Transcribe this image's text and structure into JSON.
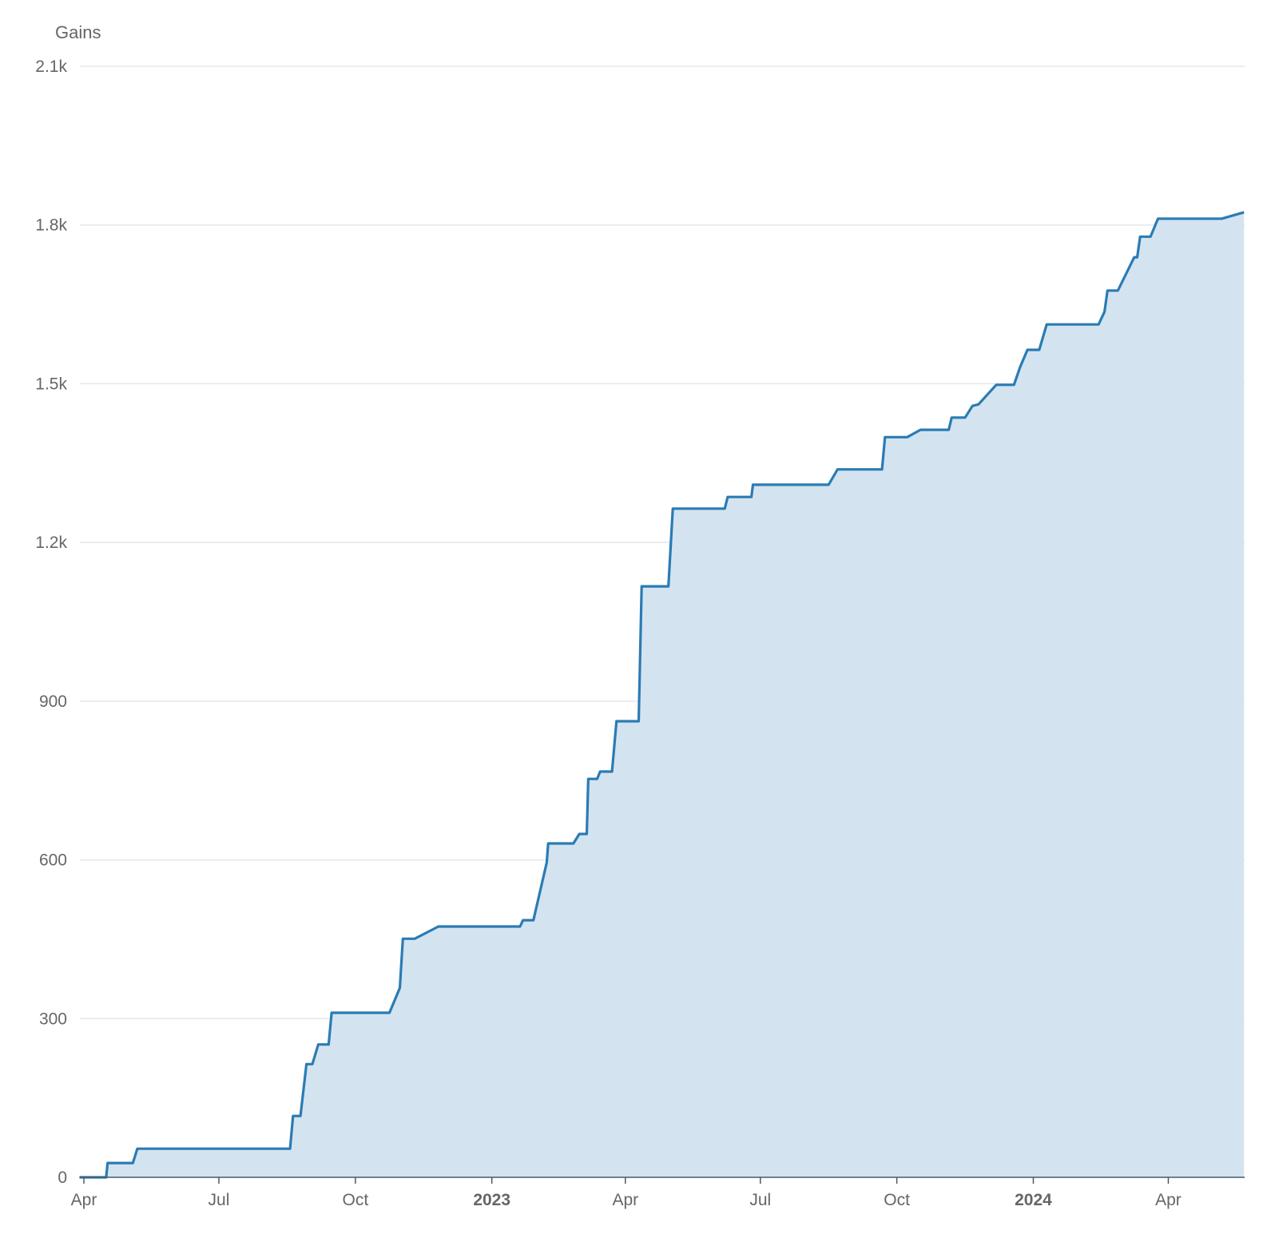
{
  "chart_data": {
    "type": "area",
    "title": "",
    "ylabel": "Gains",
    "xlabel": "",
    "ylim": [
      0,
      2100
    ],
    "xlim": [
      "2022-03-29",
      "2024-05-22"
    ],
    "grid": true,
    "colors": {
      "line": "#2b7bb4",
      "fill": "#d3e4f0",
      "grid": "#e2e8ee",
      "axis": "#4a5a6a"
    },
    "y_ticks": [
      {
        "value": 0,
        "label": "0"
      },
      {
        "value": 300,
        "label": "300"
      },
      {
        "value": 600,
        "label": "600"
      },
      {
        "value": 900,
        "label": "900"
      },
      {
        "value": 1200,
        "label": "1.2k"
      },
      {
        "value": 1500,
        "label": "1.5k"
      },
      {
        "value": 1800,
        "label": "1.8k"
      },
      {
        "value": 2100,
        "label": "2.1k"
      }
    ],
    "x_ticks": [
      {
        "date": "2022-04-01",
        "label": "Apr",
        "year": false
      },
      {
        "date": "2022-07-01",
        "label": "Jul",
        "year": false
      },
      {
        "date": "2022-10-01",
        "label": "Oct",
        "year": false
      },
      {
        "date": "2023-01-01",
        "label": "2023",
        "year": true
      },
      {
        "date": "2023-04-01",
        "label": "Apr",
        "year": false
      },
      {
        "date": "2023-07-01",
        "label": "Jul",
        "year": false
      },
      {
        "date": "2023-10-01",
        "label": "Oct",
        "year": false
      },
      {
        "date": "2024-01-01",
        "label": "2024",
        "year": true
      },
      {
        "date": "2024-04-01",
        "label": "Apr",
        "year": false
      }
    ],
    "series": [
      {
        "points": [
          [
            "2022-03-29",
            0
          ],
          [
            "2022-04-16",
            0
          ],
          [
            "2022-04-17",
            27
          ],
          [
            "2022-05-04",
            27
          ],
          [
            "2022-05-07",
            54
          ],
          [
            "2022-08-18",
            54
          ],
          [
            "2022-08-20",
            116
          ],
          [
            "2022-08-25",
            116
          ],
          [
            "2022-08-29",
            214
          ],
          [
            "2022-09-02",
            214
          ],
          [
            "2022-09-06",
            251
          ],
          [
            "2022-09-13",
            251
          ],
          [
            "2022-09-15",
            311
          ],
          [
            "2022-10-24",
            311
          ],
          [
            "2022-10-31",
            358
          ],
          [
            "2022-11-02",
            451
          ],
          [
            "2022-11-10",
            451
          ],
          [
            "2022-11-26",
            474
          ],
          [
            "2023-01-20",
            474
          ],
          [
            "2023-01-22",
            486
          ],
          [
            "2023-01-29",
            486
          ],
          [
            "2023-02-07",
            595
          ],
          [
            "2023-02-08",
            631
          ],
          [
            "2023-02-25",
            631
          ],
          [
            "2023-03-01",
            649
          ],
          [
            "2023-03-06",
            649
          ],
          [
            "2023-03-07",
            753
          ],
          [
            "2023-03-13",
            753
          ],
          [
            "2023-03-15",
            767
          ],
          [
            "2023-03-23",
            767
          ],
          [
            "2023-03-26",
            862
          ],
          [
            "2023-04-10",
            862
          ],
          [
            "2023-04-12",
            1117
          ],
          [
            "2023-04-30",
            1117
          ],
          [
            "2023-05-03",
            1264
          ],
          [
            "2023-06-07",
            1264
          ],
          [
            "2023-06-09",
            1286
          ],
          [
            "2023-06-25",
            1286
          ],
          [
            "2023-06-26",
            1309
          ],
          [
            "2023-08-16",
            1309
          ],
          [
            "2023-08-22",
            1338
          ],
          [
            "2023-09-21",
            1338
          ],
          [
            "2023-09-23",
            1399
          ],
          [
            "2023-10-08",
            1399
          ],
          [
            "2023-10-17",
            1413
          ],
          [
            "2023-11-05",
            1413
          ],
          [
            "2023-11-07",
            1436
          ],
          [
            "2023-11-16",
            1436
          ],
          [
            "2023-11-21",
            1458
          ],
          [
            "2023-11-25",
            1461
          ],
          [
            "2023-12-07",
            1498
          ],
          [
            "2023-12-19",
            1498
          ],
          [
            "2023-12-23",
            1531
          ],
          [
            "2023-12-28",
            1564
          ],
          [
            "2024-01-05",
            1564
          ],
          [
            "2024-01-10",
            1612
          ],
          [
            "2024-02-14",
            1612
          ],
          [
            "2024-02-18",
            1636
          ],
          [
            "2024-02-20",
            1676
          ],
          [
            "2024-02-27",
            1676
          ],
          [
            "2024-03-09",
            1739
          ],
          [
            "2024-03-11",
            1739
          ],
          [
            "2024-03-13",
            1778
          ],
          [
            "2024-03-20",
            1778
          ],
          [
            "2024-03-25",
            1812
          ],
          [
            "2024-05-07",
            1812
          ],
          [
            "2024-05-22",
            1824
          ]
        ]
      }
    ]
  }
}
